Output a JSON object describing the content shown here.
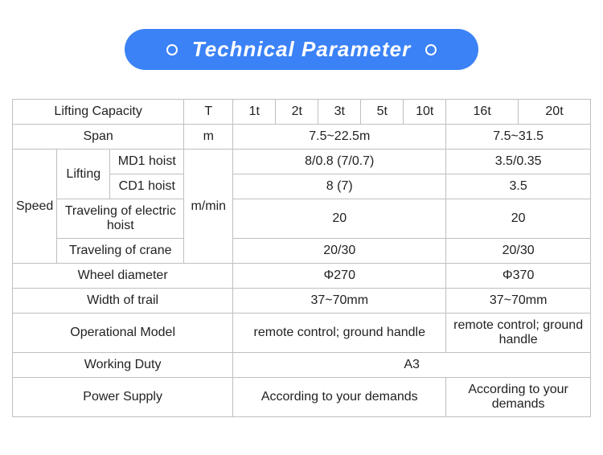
{
  "banner": {
    "title": "Technical Parameter"
  },
  "table": {
    "header": {
      "lifting_capacity": "Lifting Capacity",
      "unit_t": "T",
      "caps": [
        "1t",
        "2t",
        "3t",
        "5t",
        "10t",
        "16t",
        "20t"
      ]
    },
    "span": {
      "label": "Span",
      "unit": "m",
      "v1": "7.5~22.5m",
      "v2": "7.5~31.5"
    },
    "speed": {
      "label": "Speed",
      "lifting_label": "Lifting",
      "md1": {
        "label": "MD1 hoist",
        "v1": "8/0.8 (7/0.7)",
        "v2": "3.5/0.35"
      },
      "cd1": {
        "label": "CD1 hoist",
        "v1": "8 (7)",
        "v2": "3.5"
      },
      "unit": "m/min",
      "trav_hoist": {
        "label": "Traveling of electric hoist",
        "v1": "20",
        "v2": "20"
      },
      "trav_crane": {
        "label": "Traveling of crane",
        "v1": "20/30",
        "v2": "20/30"
      }
    },
    "wheel": {
      "label": "Wheel diameter",
      "v1": "Φ270",
      "v2": "Φ370"
    },
    "trail": {
      "label": "Width of trail",
      "v1": "37~70mm",
      "v2": "37~70mm"
    },
    "opmodel": {
      "label": "Operational Model",
      "v1": "remote control; ground handle",
      "v2": "remote control; ground handle"
    },
    "duty": {
      "label": "Working Duty",
      "v": "A3"
    },
    "power": {
      "label": "Power Supply",
      "v1": "According to your demands",
      "v2": "According to your demands"
    }
  },
  "style": {
    "banner_bg": "#3b82f6",
    "banner_text_color": "#ffffff",
    "border_color": "#bfbfbf",
    "text_color": "#222222",
    "font_size_table": 16,
    "font_size_banner": 26
  }
}
